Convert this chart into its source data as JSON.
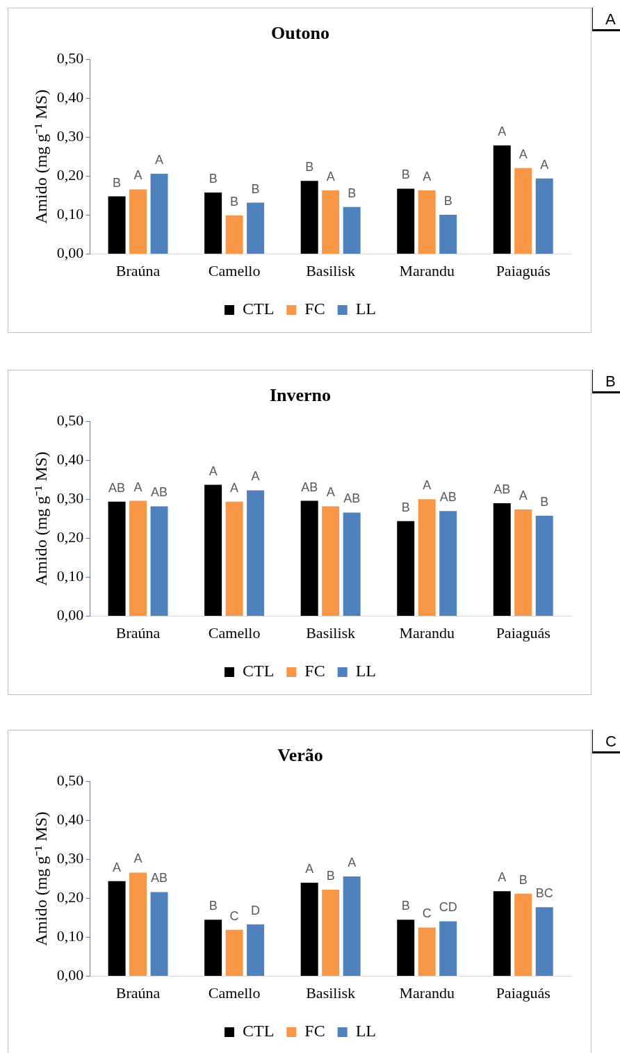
{
  "chart_data": [
    {
      "type": "bar",
      "title": "Outono",
      "ylabel": "Amido (mg g⁻¹ MS)",
      "annotations": [
        "A"
      ],
      "categories": [
        "Braúna",
        "Camello",
        "Basilisk",
        "Marandu",
        "Paiaguás"
      ],
      "ylim": [
        0,
        0.5
      ],
      "yticks": [
        {
          "value": 0,
          "label": "0,00"
        },
        {
          "value": 0.1,
          "label": "0,10"
        },
        {
          "value": 0.2,
          "label": "0,20"
        },
        {
          "value": 0.3,
          "label": "0,30"
        },
        {
          "value": 0.4,
          "label": "0,40"
        },
        {
          "value": 0.5,
          "label": "0,50"
        }
      ],
      "grid": false,
      "legend": "bottom",
      "series": [
        {
          "name": "CTL",
          "color": "#000000",
          "values": [
            0.148,
            0.158,
            0.188,
            0.168,
            0.279
          ],
          "value_labels": [
            "B",
            "B",
            "B",
            "B",
            "A"
          ]
        },
        {
          "name": "FC",
          "color": "#f79646",
          "values": [
            0.166,
            0.099,
            0.164,
            0.164,
            0.221
          ],
          "value_labels": [
            "A",
            "B",
            "A",
            "A",
            "A"
          ]
        },
        {
          "name": "LL",
          "color": "#4f81bd",
          "values": [
            0.206,
            0.132,
            0.121,
            0.101,
            0.194
          ],
          "value_labels": [
            "A",
            "B",
            "B",
            "B",
            "A"
          ]
        }
      ]
    },
    {
      "type": "bar",
      "title": "Inverno",
      "ylabel": "Amido (mg g⁻¹ MS)",
      "annotations": [
        "B"
      ],
      "categories": [
        "Braúna",
        "Camello",
        "Basilisk",
        "Marandu",
        "Paiaguás"
      ],
      "ylim": [
        0,
        0.5
      ],
      "yticks": [
        {
          "value": 0,
          "label": "0,00"
        },
        {
          "value": 0.1,
          "label": "0,10"
        },
        {
          "value": 0.2,
          "label": "0,20"
        },
        {
          "value": 0.3,
          "label": "0,30"
        },
        {
          "value": 0.4,
          "label": "0,40"
        },
        {
          "value": 0.5,
          "label": "0,50"
        }
      ],
      "grid": false,
      "legend": "bottom",
      "series": [
        {
          "name": "CTL",
          "color": "#000000",
          "values": [
            0.294,
            0.337,
            0.296,
            0.244,
            0.29
          ],
          "value_labels": [
            "AB",
            "A",
            "AB",
            "B",
            "AB"
          ]
        },
        {
          "name": "FC",
          "color": "#f79646",
          "values": [
            0.296,
            0.294,
            0.282,
            0.3,
            0.274
          ],
          "value_labels": [
            "A",
            "A",
            "A",
            "A",
            "A"
          ]
        },
        {
          "name": "LL",
          "color": "#4f81bd",
          "values": [
            0.282,
            0.323,
            0.266,
            0.27,
            0.258
          ],
          "value_labels": [
            "AB",
            "A",
            "AB",
            "AB",
            "B"
          ]
        }
      ]
    },
    {
      "type": "bar",
      "title": "Verão",
      "ylabel": "Amido (mg g⁻¹ MS)",
      "annotations": [
        "C"
      ],
      "categories": [
        "Braúna",
        "Camello",
        "Basilisk",
        "Marandu",
        "Paiaguás"
      ],
      "ylim": [
        0,
        0.5
      ],
      "yticks": [
        {
          "value": 0,
          "label": "0,00"
        },
        {
          "value": 0.1,
          "label": "0,10"
        },
        {
          "value": 0.2,
          "label": "0,20"
        },
        {
          "value": 0.3,
          "label": "0,30"
        },
        {
          "value": 0.4,
          "label": "0,40"
        },
        {
          "value": 0.5,
          "label": "0,50"
        }
      ],
      "grid": false,
      "legend": "bottom",
      "series": [
        {
          "name": "CTL",
          "color": "#000000",
          "values": [
            0.244,
            0.145,
            0.24,
            0.145,
            0.218
          ],
          "value_labels": [
            "A",
            "B",
            "A",
            "B",
            "A"
          ]
        },
        {
          "name": "FC",
          "color": "#f79646",
          "values": [
            0.266,
            0.119,
            0.222,
            0.125,
            0.212
          ],
          "value_labels": [
            "A",
            "C",
            "B",
            "C",
            "B"
          ]
        },
        {
          "name": "LL",
          "color": "#4f81bd",
          "values": [
            0.216,
            0.133,
            0.256,
            0.141,
            0.177
          ],
          "value_labels": [
            "AB",
            "D",
            "A",
            "CD",
            "BC"
          ]
        }
      ]
    }
  ]
}
